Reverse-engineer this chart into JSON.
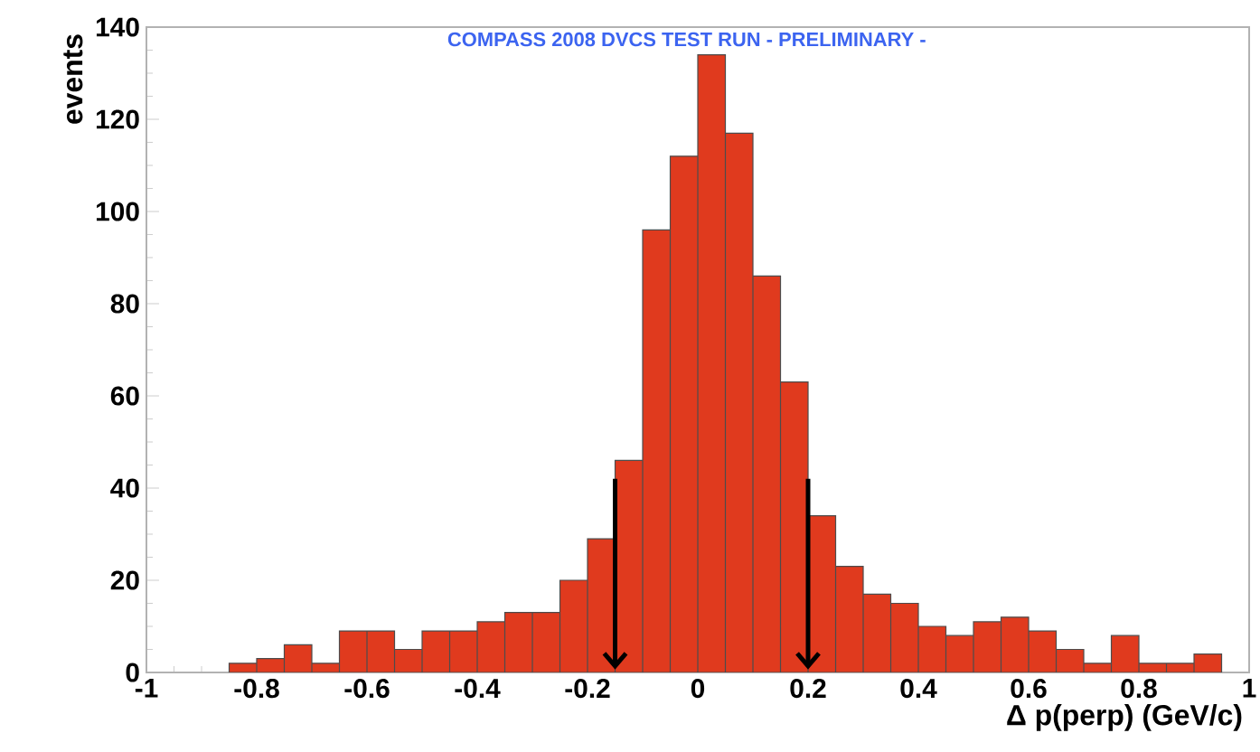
{
  "chart_data": {
    "type": "histogram",
    "title": "COMPASS 2008 DVCS TEST RUN  - PRELIMINARY -",
    "xlabel": "Δ p(perp) (GeV/c)",
    "ylabel": "events",
    "bins": [
      -0.85,
      -0.8,
      -0.75,
      -0.7,
      -0.65,
      -0.6,
      -0.55,
      -0.5,
      -0.45,
      -0.4,
      -0.35,
      -0.3,
      -0.25,
      -0.2,
      -0.15,
      -0.1,
      -0.05,
      0,
      0.05,
      0.1,
      0.15,
      0.2,
      0.25,
      0.3,
      0.35,
      0.4,
      0.45,
      0.5,
      0.55,
      0.6,
      0.65,
      0.7,
      0.75,
      0.8,
      0.85,
      0.9,
      0.95
    ],
    "values": [
      2,
      3,
      6,
      2,
      9,
      9,
      5,
      9,
      9,
      11,
      13,
      13,
      20,
      29,
      46,
      96,
      112,
      134,
      117,
      86,
      63,
      34,
      23,
      17,
      15,
      10,
      8,
      11,
      12,
      9,
      5,
      2,
      8,
      2,
      2,
      4
    ],
    "color": "#e03a1e",
    "xlim": [
      -1,
      1
    ],
    "ylim": [
      0,
      140
    ],
    "xticks": [
      -1,
      -0.8,
      -0.6,
      -0.4,
      -0.2,
      0,
      0.2,
      0.4,
      0.6,
      0.8,
      1
    ],
    "yticks": [
      0,
      20,
      40,
      60,
      80,
      100,
      120,
      140
    ],
    "ref_lines": [
      {
        "axis": "x",
        "value": -0.15,
        "color": "#000000",
        "line_style": "solid"
      },
      {
        "axis": "x",
        "value": 0.2,
        "color": "#000000",
        "line_style": "solid"
      }
    ],
    "grid": false
  }
}
